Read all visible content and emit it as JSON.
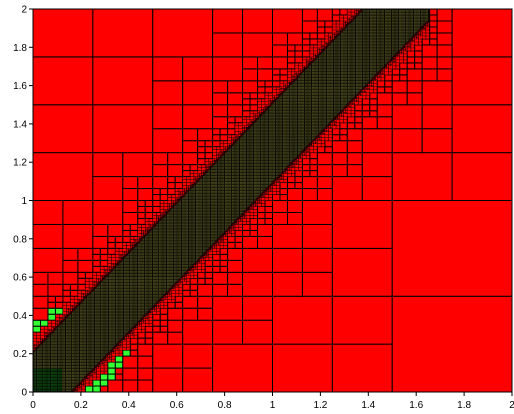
{
  "chart_data": {
    "type": "heatmap",
    "subtype": "adaptive quadtree mesh",
    "title": "",
    "xlabel": "",
    "ylabel": "",
    "xlim": [
      0,
      2
    ],
    "ylim": [
      0,
      2
    ],
    "x_ticks": [
      "0",
      "0.2",
      "0.4",
      "0.6",
      "0.8",
      "1",
      "1.2",
      "1.4",
      "1.6",
      "1.8",
      "2"
    ],
    "y_ticks": [
      "0",
      "0.2",
      "0.4",
      "0.6",
      "0.8",
      "1",
      "1.2",
      "1.4",
      "1.6",
      "1.8",
      "2"
    ],
    "grid": false,
    "legend": "none",
    "colors": {
      "coarse_cell": "#ff0000",
      "refined_band_cell": "#ffff66",
      "origin_cell": "#33ff33",
      "cell_border": "#000000"
    },
    "refinement": {
      "band_slope": 1.3,
      "band_half_width": 0.12,
      "band_x_range": [
        0,
        1.6
      ],
      "origin_region_radius": 0.45,
      "max_level": 9
    },
    "highlight_cells": [
      {
        "x": 0.25,
        "y": 1.75,
        "size": 0.5
      },
      {
        "x": 1.5,
        "y": 1.5,
        "size": 1.0
      },
      {
        "x": 1.5,
        "y": 0.5,
        "size": 1.0
      }
    ]
  }
}
